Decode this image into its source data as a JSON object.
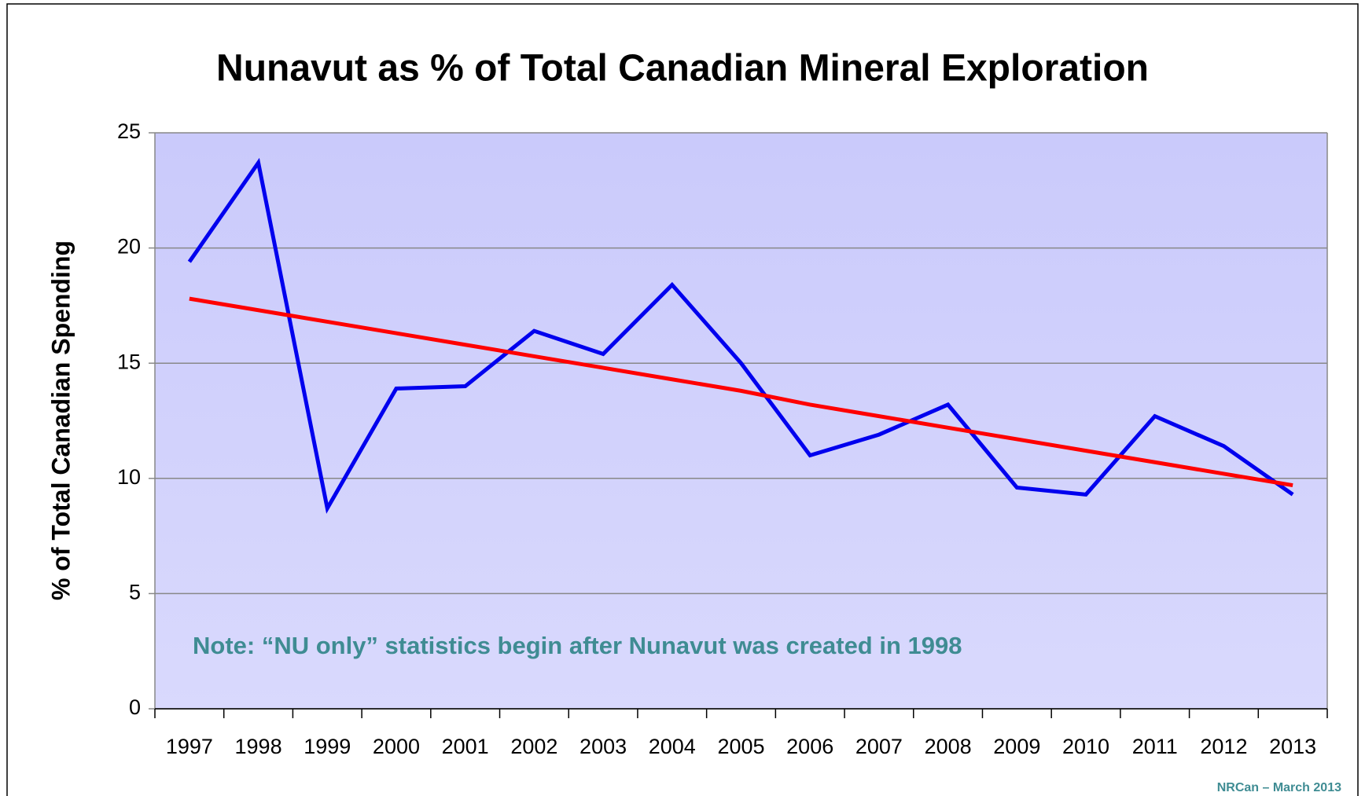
{
  "chart_data": {
    "type": "line",
    "title": "Nunavut as % of Total Canadian Mineral Exploration",
    "y_label": "% of Total Canadian Spending",
    "annotations": [
      "Note: “NU only” statistics begin after Nunavut was created in 1998",
      "NRCan – March  2013"
    ],
    "categories": [
      "1997",
      "1998",
      "1999",
      "2000",
      "2001",
      "2002",
      "2003",
      "2004",
      "2005",
      "2006",
      "2007",
      "2008",
      "2009",
      "2010",
      "2011",
      "2012",
      "2013"
    ],
    "series": [
      {
        "color": "#0000ee",
        "values": [
          19.4,
          23.7,
          8.7,
          13.9,
          14.0,
          16.4,
          15.4,
          18.4,
          15.0,
          11.0,
          11.9,
          13.2,
          9.6,
          9.3,
          12.7,
          11.4,
          9.3
        ]
      },
      {
        "color": "#ff0000",
        "values": [
          17.8,
          17.3,
          16.8,
          16.3,
          15.8,
          15.3,
          14.8,
          14.3,
          13.8,
          13.2,
          12.7,
          12.2,
          11.7,
          11.2,
          10.7,
          10.2,
          9.7
        ]
      }
    ],
    "ylim": [
      0,
      25
    ],
    "yticks": [
      0,
      5,
      10,
      15,
      20,
      25
    ],
    "grid": true
  }
}
